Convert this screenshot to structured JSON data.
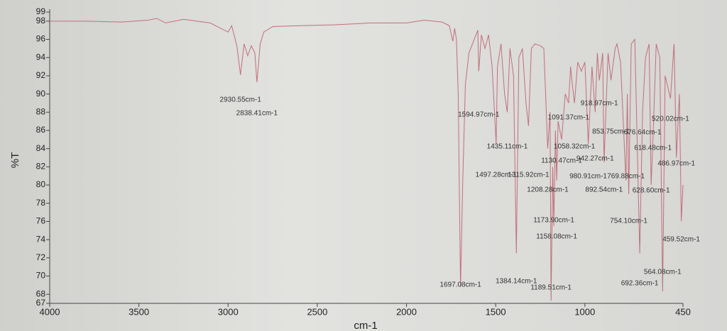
{
  "chart_data": {
    "type": "line",
    "xlabel": "cm-1",
    "ylabel": "%T",
    "xlim": [
      4000,
      450
    ],
    "ylim": [
      67,
      99
    ],
    "xticks": [
      4000,
      3500,
      3000,
      2500,
      2000,
      1500,
      1000,
      450
    ],
    "yticks": [
      67,
      68,
      70,
      72,
      74,
      76,
      78,
      80,
      82,
      84,
      86,
      88,
      90,
      92,
      94,
      96,
      98,
      99
    ],
    "x": [
      4000,
      3800,
      3600,
      3450,
      3400,
      3350,
      3250,
      3100,
      3050,
      3000,
      2980,
      2960,
      2950,
      2930.55,
      2910,
      2890,
      2870,
      2850,
      2838.41,
      2820,
      2800,
      2750,
      2600,
      2400,
      2200,
      2000,
      1900,
      1800,
      1760,
      1740,
      1730,
      1720,
      1710,
      1697.08,
      1685,
      1670,
      1650,
      1620,
      1600,
      1594.97,
      1580,
      1560,
      1540,
      1520,
      1497.28,
      1490,
      1470,
      1450,
      1435.11,
      1420,
      1400,
      1384.14,
      1370,
      1350,
      1330,
      1315.92,
      1300,
      1280,
      1250,
      1230,
      1208.28,
      1195,
      1189.51,
      1180,
      1173.9,
      1165,
      1158.08,
      1150,
      1130.47,
      1110,
      1091.37,
      1080,
      1070,
      1058.32,
      1040,
      1020,
      1000,
      980.91,
      960,
      942.27,
      930,
      918.97,
      900,
      892.54,
      870,
      853.75,
      830,
      820,
      800,
      769.88,
      762,
      754.1,
      740,
      720,
      692.36,
      676.64,
      660,
      640,
      628.6,
      618.48,
      600,
      580,
      564.08,
      550,
      520.02,
      500,
      486.97,
      470,
      459.52,
      450
    ],
    "series": [
      {
        "color": "#c0707a",
        "values": [
          98,
          98,
          97.9,
          98.1,
          98.3,
          97.8,
          98.2,
          97.8,
          97.3,
          96.8,
          97.5,
          96,
          95.2,
          92.1,
          95.5,
          94.2,
          95.3,
          94.5,
          91.3,
          95.5,
          96.8,
          97.4,
          97.5,
          97.6,
          97.8,
          97.8,
          98.1,
          97.9,
          97.5,
          95.8,
          97.2,
          96,
          90,
          68.8,
          80,
          91,
          94.5,
          96,
          97,
          92.5,
          96.5,
          95,
          96.5,
          93,
          84.5,
          93,
          95.5,
          90,
          88,
          95,
          92,
          72.5,
          94,
          95,
          89,
          86.5,
          95,
          95.5,
          95.3,
          95,
          84,
          88,
          67.3,
          82,
          75.5,
          86,
          80.5,
          87,
          85,
          90,
          89,
          93,
          91,
          89,
          93.5,
          92.5,
          93.5,
          84.5,
          93,
          88,
          94.5,
          91.5,
          94.5,
          82.5,
          94.5,
          91.5,
          95,
          95.5,
          93.5,
          80.5,
          90,
          79,
          95.5,
          96,
          72.5,
          88,
          94,
          95.5,
          80,
          85,
          95.5,
          94,
          68.3,
          92,
          89.5,
          95.5,
          83,
          90,
          76,
          80
        ]
      }
    ],
    "peaks": [
      {
        "x": 2930.55,
        "label": "2930.55cm-1"
      },
      {
        "x": 2838.41,
        "label": "2838.41cm-1"
      },
      {
        "x": 1594.97,
        "label": "1594.97cm-1"
      },
      {
        "x": 1091.37,
        "label": "1091.37cm-1"
      },
      {
        "x": 918.97,
        "label": "918.97cm-1"
      },
      {
        "x": 520.02,
        "label": "520.02cm-1"
      },
      {
        "x": 853.75,
        "label": "853.75cm-1"
      },
      {
        "x": 676.64,
        "label": "676.64cm-1"
      },
      {
        "x": 1435.11,
        "label": "1435.11cm-1"
      },
      {
        "x": 1058.32,
        "label": "1058.32cm-1"
      },
      {
        "x": 618.48,
        "label": "618.48cm-1"
      },
      {
        "x": 942.27,
        "label": "942.27cm-1"
      },
      {
        "x": 1130.47,
        "label": "1130.47cm-1"
      },
      {
        "x": 486.97,
        "label": "486.97cm-1"
      },
      {
        "x": 1497.28,
        "label": "1497.28cm-1"
      },
      {
        "x": 1315.92,
        "label": "1315.92cm-1"
      },
      {
        "x": 980.91,
        "label": "980.91cm-1"
      },
      {
        "x": 769.88,
        "label": "769.88cm-1"
      },
      {
        "x": 1208.28,
        "label": "1208.28cm-1"
      },
      {
        "x": 892.54,
        "label": "892.54cm-1"
      },
      {
        "x": 628.6,
        "label": "628.60cm-1"
      },
      {
        "x": 1173.9,
        "label": "1173.90cm-1"
      },
      {
        "x": 754.1,
        "label": "754.10cm-1"
      },
      {
        "x": 1158.08,
        "label": "1158.08cm-1"
      },
      {
        "x": 459.52,
        "label": "459.52cm-1"
      },
      {
        "x": 564.08,
        "label": "564.08cm-1"
      },
      {
        "x": 1697.08,
        "label": "1697.08cm-1"
      },
      {
        "x": 1384.14,
        "label": "1384.14cm-1"
      },
      {
        "x": 692.36,
        "label": "692.36cm-1"
      },
      {
        "x": 1189.51,
        "label": "1189.51cm-1"
      }
    ]
  }
}
